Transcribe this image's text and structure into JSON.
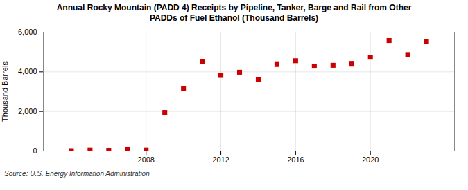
{
  "chart_data": {
    "type": "scatter",
    "title": "Annual Rocky Mountain (PADD 4) Receipts by Pipeline, Tanker, Barge and Rail from Other\nPADDs of Fuel Ethanol (Thousand Barrels)",
    "ylabel": "Thousand Barrels",
    "annotations": [
      "Source: U.S. Energy Information Administration"
    ],
    "x": [
      2004,
      2005,
      2006,
      2007,
      2008,
      2009,
      2010,
      2011,
      2012,
      2013,
      2014,
      2015,
      2016,
      2017,
      2018,
      2019,
      2020,
      2021,
      2022,
      2023
    ],
    "values": [
      18,
      45,
      35,
      70,
      45,
      1950,
      3150,
      4530,
      3820,
      3980,
      3620,
      4370,
      4560,
      4290,
      4330,
      4390,
      4740,
      5580,
      4870,
      5540
    ],
    "color": "#cc0000",
    "marker": "square",
    "xlim": [
      2002.5,
      2024.5
    ],
    "xticks": [
      2008,
      2012,
      2016,
      2020
    ],
    "ylim": [
      0,
      6000
    ],
    "yticks": [
      0,
      {
        "value": 2000,
        "label": "2,000"
      },
      {
        "value": 4000,
        "label": "4,000"
      },
      {
        "value": 6000,
        "label": "6,000"
      }
    ],
    "grid": true
  }
}
